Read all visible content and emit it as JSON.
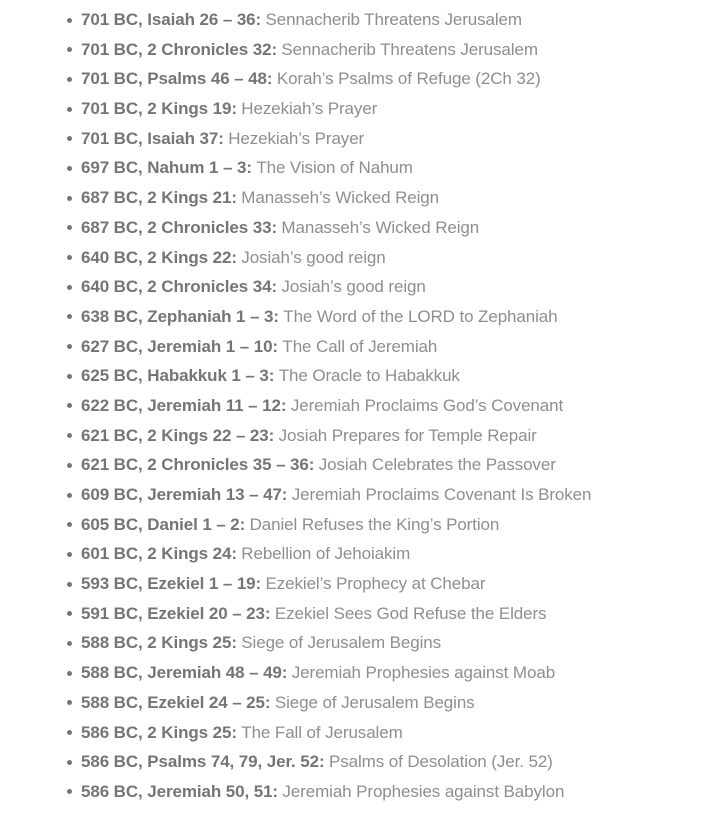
{
  "colors": {
    "reference_text": "#757575",
    "description_text": "#8e8e8e",
    "bullet": "#757575",
    "background": "#ffffff"
  },
  "list": {
    "entries": [
      {
        "ref": "701 BC, Isaiah 26 – 36:",
        "desc": "Sennacherib Threatens Jerusalem"
      },
      {
        "ref": "701 BC, 2 Chronicles 32:",
        "desc": "Sennacherib Threatens Jerusalem"
      },
      {
        "ref": "701 BC, Psalms 46 – 48:",
        "desc": "Korah’s Psalms of Refuge (2Ch 32)"
      },
      {
        "ref": "701 BC, 2 Kings 19:",
        "desc": "Hezekiah’s Prayer"
      },
      {
        "ref": "701 BC, Isaiah 37:",
        "desc": "Hezekiah’s Prayer"
      },
      {
        "ref": "697 BC, Nahum 1 – 3:",
        "desc": "The Vision of Nahum"
      },
      {
        "ref": "687 BC, 2 Kings 21:",
        "desc": "Manasseh’s Wicked Reign"
      },
      {
        "ref": "687 BC, 2 Chronicles 33:",
        "desc": "Manasseh’s Wicked Reign"
      },
      {
        "ref": "640 BC, 2 Kings 22:",
        "desc": "Josiah’s good reign"
      },
      {
        "ref": "640 BC, 2 Chronicles 34:",
        "desc": "Josiah’s good reign"
      },
      {
        "ref": "638 BC, Zephaniah 1 – 3:",
        "desc": "The Word of the LORD to Zephaniah"
      },
      {
        "ref": "627 BC, Jeremiah 1 – 10:",
        "desc": "The Call of Jeremiah"
      },
      {
        "ref": "625 BC, Habakkuk 1 – 3:",
        "desc": "The Oracle to Habakkuk"
      },
      {
        "ref": "622 BC, Jeremiah 11 – 12:",
        "desc": "Jeremiah Proclaims God’s Covenant"
      },
      {
        "ref": "621 BC, 2 Kings 22 – 23:",
        "desc": "Josiah Prepares for Temple Repair"
      },
      {
        "ref": "621 BC, 2 Chronicles 35 – 36:",
        "desc": "Josiah Celebrates the Passover"
      },
      {
        "ref": "609 BC, Jeremiah 13 – 47:",
        "desc": "Jeremiah Proclaims Covenant Is Broken"
      },
      {
        "ref": "605 BC, Daniel 1 – 2:",
        "desc": "Daniel Refuses the King’s Portion"
      },
      {
        "ref": "601 BC, 2 Kings 24:",
        "desc": "Rebellion of Jehoiakim"
      },
      {
        "ref": "593 BC, Ezekiel 1 – 19:",
        "desc": "Ezekiel’s Prophecy at Chebar"
      },
      {
        "ref": "591 BC, Ezekiel 20 – 23:",
        "desc": "Ezekiel Sees God Refuse the Elders"
      },
      {
        "ref": "588 BC, 2 Kings 25:",
        "desc": "Siege of Jerusalem Begins"
      },
      {
        "ref": "588 BC, Jeremiah 48 – 49:",
        "desc": "Jeremiah Prophesies against Moab"
      },
      {
        "ref": "588 BC, Ezekiel 24 – 25:",
        "desc": "Siege of Jerusalem Begins"
      },
      {
        "ref": "586 BC, 2 Kings 25:",
        "desc": "The Fall of Jerusalem"
      },
      {
        "ref": "586 BC, Psalms 74, 79, Jer. 52:",
        "desc": "Psalms of Desolation (Jer. 52)"
      },
      {
        "ref": "586 BC, Jeremiah 50, 51:",
        "desc": "Jeremiah Prophesies against Babylon"
      }
    ]
  }
}
